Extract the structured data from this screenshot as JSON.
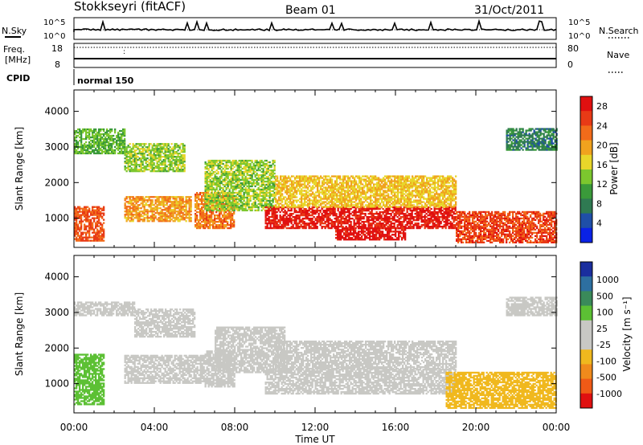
{
  "header": {
    "station": "Stokkseyri (fitACF)",
    "beam": "Beam 01",
    "date": "31/Oct/2011"
  },
  "summary": {
    "nsky_label": "N.Sky",
    "nsearch_label": "N.Search",
    "freq_label_1": "Freq.",
    "freq_label_2": "[MHz]",
    "nave_label": "Nave",
    "cpid_label": "CPID",
    "cpid_value": "normal 150",
    "noise_ticks_left": [
      "10^5",
      "10^0"
    ],
    "noise_ticks_right": [
      "10^5",
      "10^0"
    ],
    "freq_ticks": [
      "18",
      "8"
    ],
    "nave_ticks": [
      "80",
      "0"
    ]
  },
  "colors": {
    "power": [
      "#0a22e6",
      "#1f4fa8",
      "#2f7a52",
      "#3a9a3a",
      "#7cc72e",
      "#e8d62a",
      "#f0a21e",
      "#f26b1a",
      "#e83a16",
      "#e01010"
    ],
    "velocity": [
      "#1a2e9e",
      "#2d6fa0",
      "#3a8a5a",
      "#5cc034",
      "#c8c8c4",
      "#c8c8c4",
      "#f0b81e",
      "#f08a1c",
      "#f05a16",
      "#e01010"
    ]
  },
  "chart_data": [
    {
      "type": "heatmap",
      "quantity": "power",
      "xlabel": "",
      "ylabel": "Slant Range [km]",
      "colorbar_label": "Power [dB]",
      "colorbar_ticks": [
        4,
        8,
        12,
        16,
        20,
        24,
        28
      ],
      "colorbar_range": [
        0,
        30
      ],
      "x_ticks": [
        "00:00",
        "04:00",
        "08:00",
        "12:00",
        "16:00",
        "20:00",
        "00:00"
      ],
      "x_range_hours": [
        0,
        24
      ],
      "y_ticks": [
        1000,
        2000,
        3000,
        4000
      ],
      "y_range_km": [
        180,
        4600
      ],
      "echo_regions": [
        {
          "t0": 0.0,
          "t1": 1.5,
          "r0": 350,
          "r1": 1300,
          "value": 24
        },
        {
          "t0": 0.0,
          "t1": 2.5,
          "r0": 2800,
          "r1": 3500,
          "value": 12
        },
        {
          "t0": 2.5,
          "t1": 5.8,
          "r0": 900,
          "r1": 1600,
          "value": 20
        },
        {
          "t0": 2.5,
          "t1": 5.5,
          "r0": 2300,
          "r1": 3100,
          "value": 14
        },
        {
          "t0": 6.0,
          "t1": 8.0,
          "r0": 700,
          "r1": 1700,
          "value": 22
        },
        {
          "t0": 6.5,
          "t1": 10.0,
          "r0": 1200,
          "r1": 2600,
          "value": 14
        },
        {
          "t0": 9.5,
          "t1": 19.0,
          "r0": 700,
          "r1": 1300,
          "value": 28
        },
        {
          "t0": 10.0,
          "t1": 19.0,
          "r0": 1300,
          "r1": 2200,
          "value": 18
        },
        {
          "t0": 13.0,
          "t1": 16.5,
          "r0": 380,
          "r1": 700,
          "value": 29
        },
        {
          "t0": 19.0,
          "t1": 24.0,
          "r0": 300,
          "r1": 1200,
          "value": 25
        },
        {
          "t0": 21.5,
          "t1": 24.0,
          "r0": 2900,
          "r1": 3500,
          "value": 8
        }
      ]
    },
    {
      "type": "heatmap",
      "quantity": "velocity",
      "xlabel": "Time UT",
      "ylabel": "Slant Range [km]",
      "colorbar_label": "Velocity [m s⁻¹]",
      "colorbar_ticks": [
        1000,
        500,
        100,
        25,
        -25,
        -100,
        -500,
        -1000
      ],
      "colorbar_range": [
        -1000,
        1000
      ],
      "x_ticks": [
        "00:00",
        "04:00",
        "08:00",
        "12:00",
        "16:00",
        "20:00",
        "00:00"
      ],
      "x_range_hours": [
        0,
        24
      ],
      "y_ticks": [
        1000,
        2000,
        3000,
        4000
      ],
      "y_range_km": [
        180,
        4600
      ],
      "echo_regions": [
        {
          "t0": 0.0,
          "t1": 1.5,
          "r0": 400,
          "r1": 1800,
          "value": 300
        },
        {
          "t0": 0.0,
          "t1": 3.0,
          "r0": 2900,
          "r1": 3300,
          "value": 0
        },
        {
          "t0": 2.5,
          "t1": 6.5,
          "r0": 1000,
          "r1": 1800,
          "value": 80
        },
        {
          "t0": 3.0,
          "t1": 6.0,
          "r0": 2300,
          "r1": 3100,
          "value": 0
        },
        {
          "t0": 6.5,
          "t1": 8.0,
          "r0": 900,
          "r1": 1900,
          "value": 80
        },
        {
          "t0": 7.0,
          "t1": 10.5,
          "r0": 1300,
          "r1": 2600,
          "value": 0
        },
        {
          "t0": 9.5,
          "t1": 19.0,
          "r0": 700,
          "r1": 1400,
          "value": 0
        },
        {
          "t0": 10.0,
          "t1": 19.0,
          "r0": 1400,
          "r1": 2200,
          "value": 0
        },
        {
          "t0": 18.5,
          "t1": 24.0,
          "r0": 300,
          "r1": 1300,
          "value": -300
        },
        {
          "t0": 21.5,
          "t1": 24.0,
          "r0": 2900,
          "r1": 3400,
          "value": -60
        }
      ]
    }
  ]
}
